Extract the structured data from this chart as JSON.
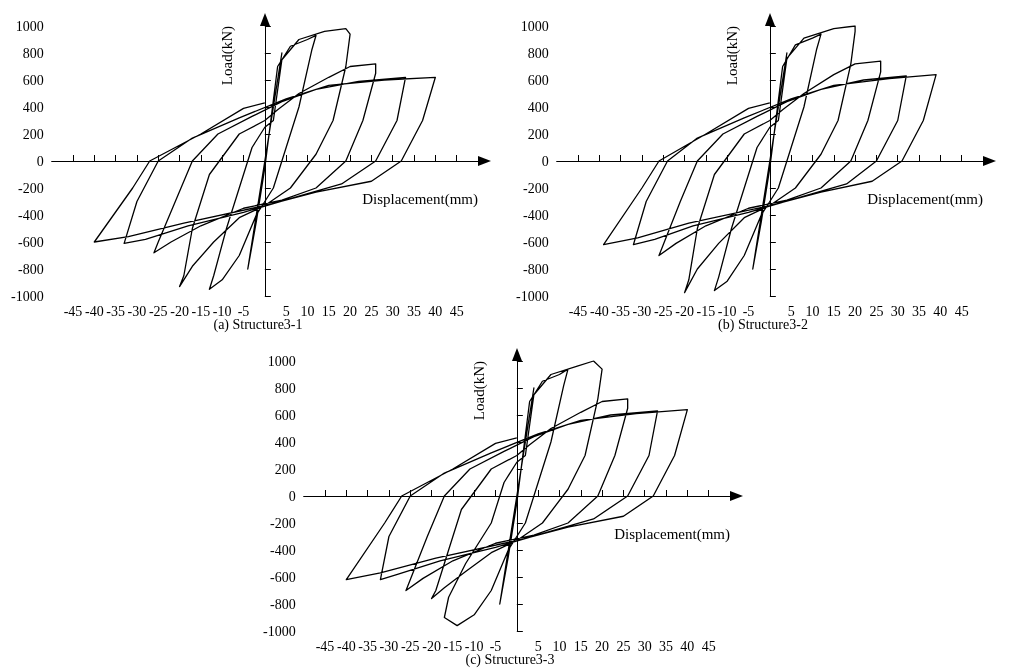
{
  "chart_data": [
    {
      "type": "line",
      "title": "(a) Structure3-1",
      "xlabel": "Displacement(mm)",
      "ylabel": "Load(kN)",
      "color": "#000000",
      "marker": "none",
      "x": [
        0,
        3,
        4,
        2,
        0,
        -2,
        -4,
        -2,
        0,
        3,
        6,
        10,
        12,
        11,
        8,
        5,
        2,
        -2,
        -6,
        -10,
        -13,
        -12,
        -9,
        -6,
        -3,
        0,
        2,
        4,
        8,
        14,
        19,
        20,
        19,
        16,
        12,
        6,
        0,
        -6,
        -12,
        -17,
        -20,
        -19,
        -17,
        -13,
        -6,
        0,
        3,
        8,
        15,
        20,
        26,
        26,
        23,
        19,
        12,
        4,
        -5,
        -15,
        -22,
        -26,
        -25,
        -21,
        -17,
        -11,
        -3,
        4,
        12,
        22,
        33,
        31,
        26,
        18,
        8,
        -5,
        -18,
        -28,
        -33,
        -30,
        -25,
        -17,
        -6,
        5,
        15,
        28,
        40,
        37,
        32,
        25,
        12,
        0,
        -19,
        -32,
        -40,
        -31,
        -27,
        -15,
        -5,
        0
      ],
      "values": [
        0,
        600,
        800,
        400,
        0,
        -400,
        -800,
        -450,
        -50,
        700,
        850,
        900,
        930,
        820,
        400,
        100,
        -200,
        -400,
        -700,
        -880,
        -950,
        -850,
        -500,
        -200,
        100,
        250,
        300,
        750,
        900,
        960,
        980,
        940,
        700,
        300,
        50,
        -200,
        -330,
        -420,
        -600,
        -780,
        -930,
        -850,
        -500,
        -100,
        200,
        300,
        380,
        500,
        620,
        700,
        720,
        650,
        300,
        0,
        -200,
        -290,
        -350,
        -480,
        -600,
        -680,
        -600,
        -300,
        0,
        200,
        330,
        440,
        530,
        590,
        620,
        300,
        0,
        -170,
        -260,
        -380,
        -480,
        -580,
        -610,
        -300,
        0,
        170,
        320,
        460,
        560,
        600,
        620,
        300,
        0,
        -150,
        -230,
        -330,
        -460,
        -560,
        -600,
        -200,
        0,
        200,
        390,
        430
      ],
      "xlim": [
        -50,
        50
      ],
      "xticks": [
        -45,
        -40,
        -35,
        -30,
        -25,
        -20,
        -15,
        -10,
        -5,
        5,
        10,
        15,
        20,
        25,
        30,
        35,
        40,
        45
      ],
      "ylim": [
        -1000,
        1000
      ],
      "yticks": [
        -1000,
        -800,
        -600,
        -400,
        -200,
        0,
        200,
        400,
        600,
        800,
        1000
      ]
    },
    {
      "type": "line",
      "title": "(b) Structure3-2",
      "xlabel": "Displacement(mm)",
      "ylabel": "Load(kN)",
      "color": "#000000",
      "marker": "none",
      "x": [
        0,
        3,
        4,
        2,
        0,
        -2,
        -4,
        -2,
        0,
        3,
        6,
        10,
        12,
        11,
        8,
        5,
        2,
        -2,
        -6,
        -10,
        -13,
        -12,
        -9,
        -6,
        -3,
        0,
        2,
        4,
        8,
        15,
        20,
        20,
        19,
        16,
        12,
        6,
        0,
        -6,
        -12,
        -17,
        -20,
        -19,
        -17,
        -13,
        -6,
        0,
        3,
        8,
        15,
        20,
        26,
        26,
        23,
        19,
        12,
        4,
        -5,
        -15,
        -22,
        -26,
        -25,
        -21,
        -17,
        -11,
        -3,
        4,
        12,
        22,
        32,
        30,
        25,
        18,
        8,
        -5,
        -18,
        -27,
        -32,
        -29,
        -24,
        -17,
        -6,
        5,
        15,
        28,
        39,
        36,
        31,
        24,
        12,
        0,
        -19,
        -31,
        -39,
        -30,
        -26,
        -15,
        -5,
        0
      ],
      "values": [
        0,
        600,
        800,
        400,
        0,
        -400,
        -800,
        -450,
        -50,
        700,
        860,
        910,
        940,
        830,
        400,
        100,
        -200,
        -400,
        -700,
        -890,
        -960,
        -860,
        -500,
        -200,
        100,
        250,
        300,
        760,
        910,
        980,
        1000,
        960,
        720,
        300,
        50,
        -200,
        -330,
        -420,
        -610,
        -800,
        -975,
        -880,
        -500,
        -100,
        200,
        300,
        380,
        500,
        640,
        720,
        740,
        660,
        300,
        0,
        -200,
        -290,
        -350,
        -480,
        -610,
        -700,
        -620,
        -300,
        0,
        200,
        330,
        440,
        530,
        600,
        630,
        300,
        0,
        -170,
        -260,
        -380,
        -480,
        -580,
        -620,
        -300,
        0,
        170,
        320,
        460,
        560,
        610,
        640,
        300,
        0,
        -150,
        -230,
        -330,
        -460,
        -570,
        -620,
        -200,
        0,
        200,
        390,
        430
      ],
      "xlim": [
        -50,
        50
      ],
      "xticks": [
        -45,
        -40,
        -35,
        -30,
        -25,
        -20,
        -15,
        -10,
        -5,
        5,
        10,
        15,
        20,
        25,
        30,
        35,
        40,
        45
      ],
      "ylim": [
        -1000,
        1000
      ],
      "yticks": [
        -1000,
        -800,
        -600,
        -400,
        -200,
        0,
        200,
        400,
        600,
        800,
        1000
      ]
    },
    {
      "type": "line",
      "title": "(c) Structure3-3",
      "xlabel": "Displacement(mm)",
      "ylabel": "Load(kN)",
      "color": "#000000",
      "marker": "none",
      "x": [
        0,
        3,
        4,
        2,
        0,
        -2,
        -4,
        -2,
        0,
        3,
        6,
        10,
        12,
        11,
        8,
        5,
        2,
        -2,
        -6,
        -10,
        -14,
        -17,
        -16,
        -12,
        -6,
        -3,
        0,
        2,
        4,
        8,
        14,
        18,
        20,
        19,
        16,
        12,
        6,
        0,
        -6,
        -12,
        -17,
        -20,
        -19,
        -17,
        -13,
        -6,
        0,
        3,
        8,
        15,
        20,
        26,
        26,
        23,
        19,
        12,
        4,
        -5,
        -15,
        -22,
        -26,
        -25,
        -21,
        -17,
        -11,
        -3,
        4,
        12,
        22,
        33,
        31,
        26,
        18,
        8,
        -5,
        -18,
        -28,
        -32,
        -30,
        -25,
        -17,
        -6,
        5,
        15,
        28,
        40,
        37,
        32,
        25,
        12,
        0,
        -19,
        -32,
        -40,
        -31,
        -27,
        -15,
        -5,
        0
      ],
      "values": [
        0,
        600,
        800,
        400,
        0,
        -400,
        -800,
        -450,
        -50,
        700,
        850,
        900,
        940,
        820,
        400,
        100,
        -200,
        -400,
        -700,
        -880,
        -960,
        -900,
        -750,
        -500,
        -200,
        100,
        250,
        300,
        750,
        900,
        960,
        1000,
        940,
        720,
        300,
        50,
        -200,
        -330,
        -420,
        -560,
        -680,
        -760,
        -700,
        -500,
        -100,
        200,
        300,
        380,
        500,
        620,
        700,
        720,
        650,
        300,
        0,
        -200,
        -290,
        -350,
        -480,
        -610,
        -700,
        -620,
        -300,
        0,
        200,
        330,
        440,
        530,
        600,
        630,
        300,
        0,
        -170,
        -260,
        -380,
        -480,
        -580,
        -620,
        -300,
        0,
        170,
        320,
        460,
        560,
        610,
        640,
        300,
        0,
        -150,
        -230,
        -330,
        -460,
        -570,
        -620,
        -200,
        0,
        200,
        390,
        430
      ],
      "xlim": [
        -50,
        50
      ],
      "xticks": [
        -45,
        -40,
        -35,
        -30,
        -25,
        -20,
        -15,
        -10,
        -5,
        5,
        10,
        15,
        20,
        25,
        30,
        35,
        40,
        45
      ],
      "ylim": [
        -1000,
        1000
      ],
      "yticks": [
        -1000,
        -800,
        -600,
        -400,
        -200,
        0,
        200,
        400,
        600,
        800,
        1000
      ]
    }
  ]
}
